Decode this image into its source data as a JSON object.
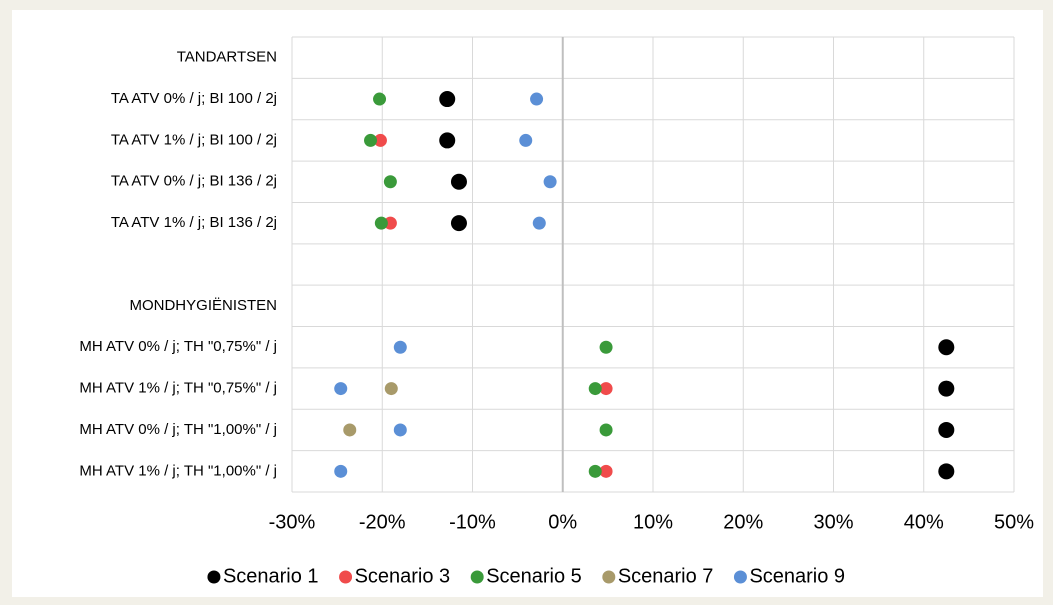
{
  "chart_data": {
    "type": "dot",
    "categories": [
      "TANDARTSEN",
      "TA ATV 0% / j; BI 100 / 2j",
      "TA ATV 1% / j; BI 100 / 2j",
      "TA ATV 0% / j; BI 136 / 2j",
      "TA ATV 1% / j; BI 136 / 2j",
      null,
      "MONDHYGIËNISTEN",
      "MH ATV 0% / j; TH \"0,75%\" / j",
      "MH ATV 1% / j; TH \"0,75%\" / j",
      "MH ATV 0% / j; TH \"1,00%\" / j",
      "MH ATV 1% / j; TH \"1,00%\" / j"
    ],
    "series": [
      {
        "name": "Scenario 1",
        "color": "#000000",
        "values": [
          null,
          -12.8,
          -12.8,
          -11.5,
          -11.5,
          null,
          null,
          42.5,
          42.5,
          42.5,
          42.5
        ]
      },
      {
        "name": "Scenario 3",
        "color": "#f04b4b",
        "values": [
          null,
          null,
          -20.2,
          null,
          -19.1,
          null,
          null,
          null,
          4.8,
          null,
          4.8
        ]
      },
      {
        "name": "Scenario 5",
        "color": "#3a9a3a",
        "values": [
          null,
          -20.3,
          -21.3,
          -19.1,
          -20.1,
          null,
          null,
          4.8,
          3.6,
          4.8,
          3.6
        ]
      },
      {
        "name": "Scenario 7",
        "color": "#a89a6a",
        "values": [
          null,
          null,
          null,
          null,
          null,
          null,
          null,
          null,
          -19.0,
          -23.6,
          null
        ]
      },
      {
        "name": "Scenario 9",
        "color": "#5b8fd6",
        "values": [
          null,
          -2.9,
          -4.1,
          -1.4,
          -2.6,
          null,
          null,
          -18.0,
          -24.6,
          -18.0,
          -24.6
        ]
      }
    ],
    "xlim": [
      -30,
      50
    ],
    "xticks": [
      {
        "value": -30,
        "label": "-30%"
      },
      {
        "value": -20,
        "label": "-20%"
      },
      {
        "value": -10,
        "label": "-10%"
      },
      {
        "value": 0,
        "label": "0%"
      },
      {
        "value": 10,
        "label": "10%"
      },
      {
        "value": 20,
        "label": "20%"
      },
      {
        "value": 30,
        "label": "30%"
      },
      {
        "value": 40,
        "label": "40%"
      },
      {
        "value": 50,
        "label": "50%"
      }
    ],
    "grid": true,
    "legend": "bottom"
  }
}
